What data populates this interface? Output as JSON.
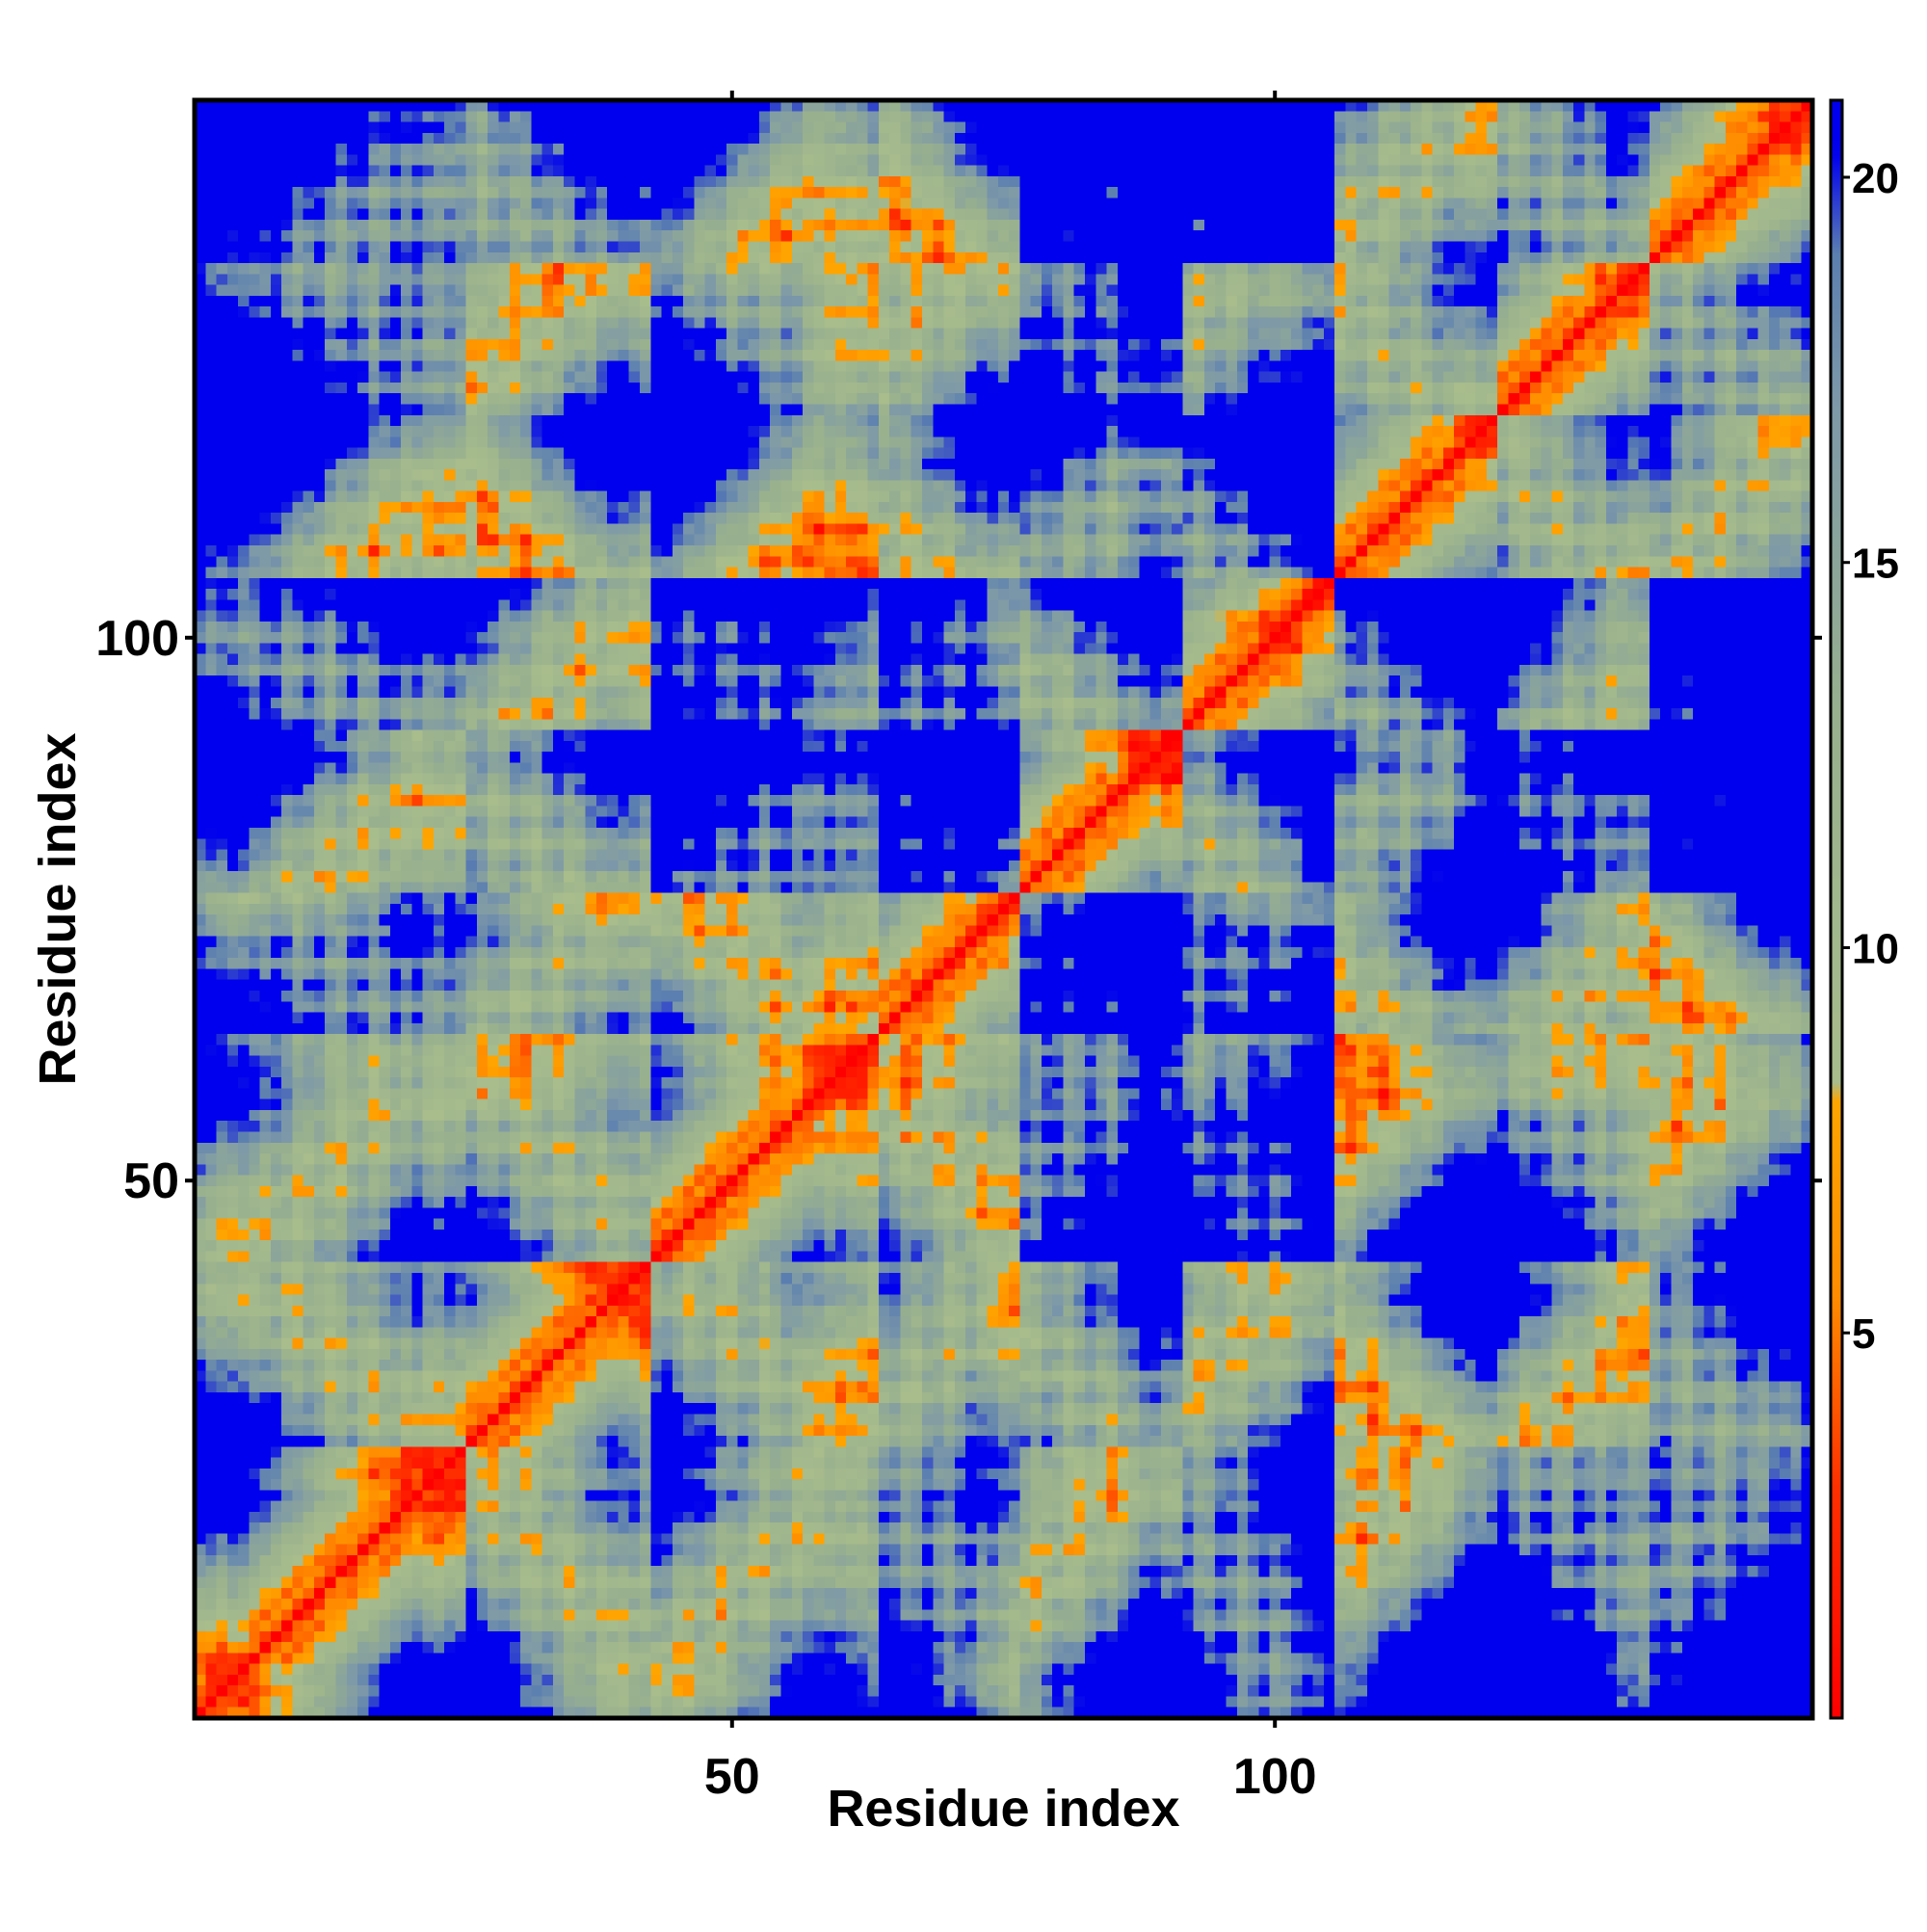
{
  "chart_data": {
    "type": "heatmap",
    "title": "",
    "xlabel": "Residue index",
    "ylabel": "Residue index",
    "n": 149,
    "xlim": [
      1,
      149
    ],
    "ylim": [
      1,
      149
    ],
    "x_ticks": [
      50,
      100
    ],
    "y_ticks": [
      50,
      100
    ],
    "colorbar": {
      "range": [
        0,
        21
      ],
      "ticks": [
        5,
        10,
        15,
        20
      ],
      "stops": [
        {
          "value": 0,
          "color": "#ff0000"
        },
        {
          "value": 3,
          "color": "#ff3000"
        },
        {
          "value": 5.5,
          "color": "#ff8c00"
        },
        {
          "value": 8,
          "color": "#ffa500"
        },
        {
          "value": 8.01,
          "color": "#a9bd8c"
        },
        {
          "value": 13,
          "color": "#98b08e"
        },
        {
          "value": 17,
          "color": "#7e99a8"
        },
        {
          "value": 19,
          "color": "#5b7fb0"
        },
        {
          "value": 20.3,
          "color": "#0000ee"
        }
      ],
      "background_color": "#0000ee"
    },
    "matrix_description": "symmetric residue-residue distance map (Angstrom); diagonal ~0",
    "helices": [
      [
        6,
        20
      ],
      [
        26,
        38
      ],
      [
        43,
        57
      ],
      [
        64,
        74
      ],
      [
        77,
        87
      ],
      [
        92,
        100
      ],
      [
        106,
        117
      ],
      [
        121,
        131
      ],
      [
        135,
        146
      ]
    ]
  }
}
